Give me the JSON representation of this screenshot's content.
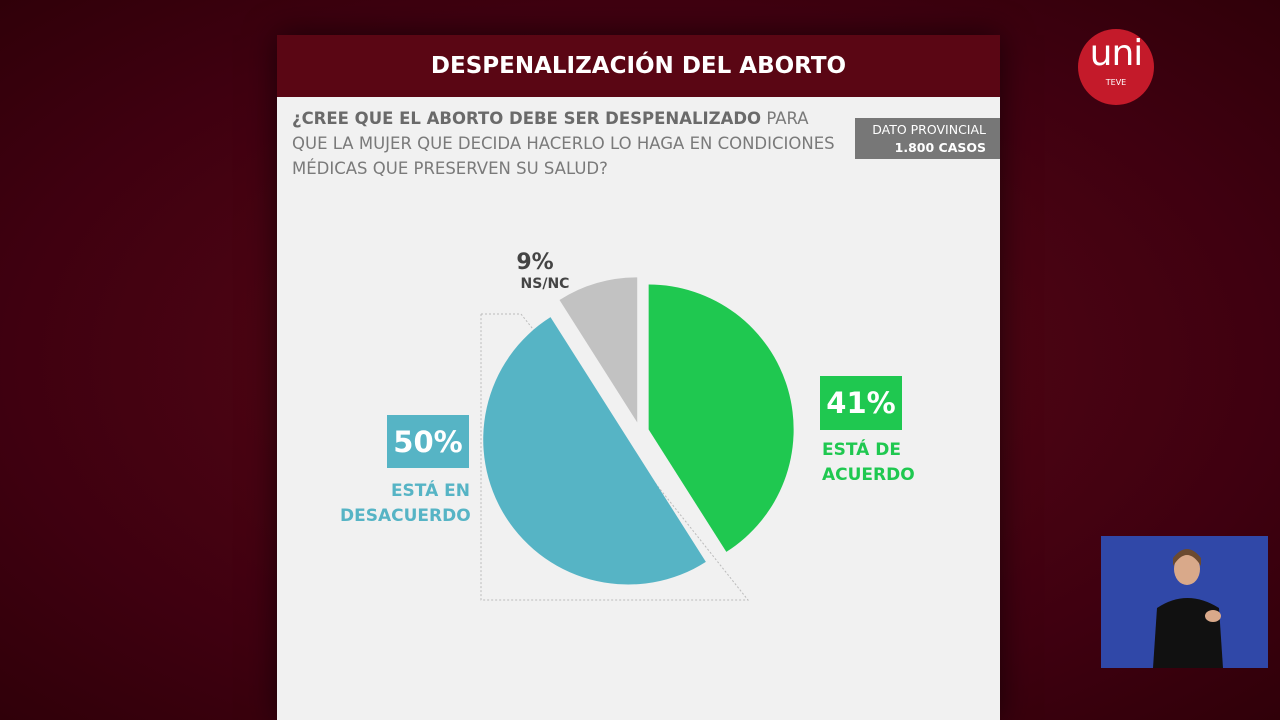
{
  "chart_data": {
    "type": "pie",
    "title": "DESPENALIZACIÓN DEL ABORTO",
    "question": {
      "bold": "¿CREE QUE EL ABORTO DEBE SER DESPENALIZADO",
      "rest": "PARA QUE LA MUJER QUE DECIDA HACERLO LO HAGA EN CONDICIONES MÉDICAS QUE PRESERVEN SU SALUD?"
    },
    "source_box": [
      "DATO PROVINCIAL",
      "1.800 CASOS"
    ],
    "categories": [
      "ESTÁ DE ACUERDO",
      "ESTÁ EN DESACUERDO",
      "NS/NC"
    ],
    "values": [
      41,
      50,
      9
    ],
    "value_labels": [
      "41%",
      "50%",
      "9%"
    ],
    "colors": [
      "#1fc850",
      "#56b4c5",
      "#c2c2c2"
    ]
  },
  "logo": {
    "text": "uni",
    "subtitle": "TEVE"
  }
}
